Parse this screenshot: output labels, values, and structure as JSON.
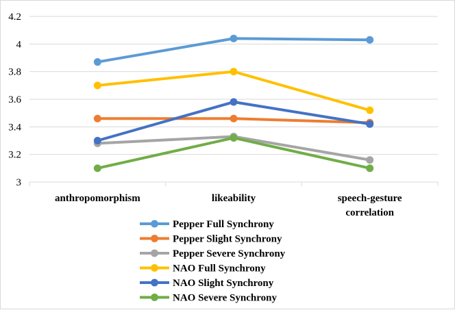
{
  "chart_data": {
    "type": "line",
    "categories": [
      [
        "anthropomorphism"
      ],
      [
        "likeability"
      ],
      [
        "speech-gesture",
        "correlation"
      ]
    ],
    "ylim": [
      3,
      4.2
    ],
    "yticks": [
      "3",
      "3.2",
      "3.4",
      "3.6",
      "3.8",
      "4",
      "4.2"
    ],
    "ytick_values": [
      3,
      3.2,
      3.4,
      3.6,
      3.8,
      4,
      4.2
    ],
    "grid": true,
    "legend_position": "bottom",
    "series": [
      {
        "name": "Pepper Full Synchrony",
        "color": "#5B9BD5",
        "values": [
          3.87,
          4.04,
          4.03
        ]
      },
      {
        "name": "Pepper Slight Synchrony",
        "color": "#ED7D31",
        "values": [
          3.46,
          3.46,
          3.43
        ]
      },
      {
        "name": "Pepper Severe Synchrony",
        "color": "#A5A5A5",
        "values": [
          3.28,
          3.33,
          3.16
        ]
      },
      {
        "name": "NAO Full Synchrony",
        "color": "#FFC000",
        "values": [
          3.7,
          3.8,
          3.52
        ]
      },
      {
        "name": "NAO Slight Synchrony",
        "color": "#4472C4",
        "values": [
          3.3,
          3.58,
          3.42
        ]
      },
      {
        "name": "NAO Severe Synchrony",
        "color": "#70AD47",
        "values": [
          3.1,
          3.32,
          3.1
        ]
      }
    ]
  }
}
